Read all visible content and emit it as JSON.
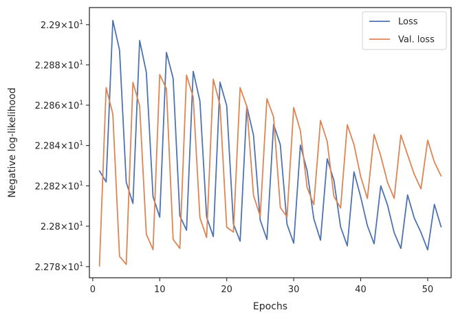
{
  "chart_data": {
    "type": "line",
    "title": "",
    "xlabel": "Epochs",
    "ylabel": "Negative log-likelihood",
    "xlim": [
      -0.5,
      53.5
    ],
    "ylim": [
      22.7745,
      22.9085
    ],
    "yscale": "log",
    "grid": false,
    "legend_position": "top-right",
    "x_ticks": [
      0,
      10,
      20,
      30,
      40,
      50
    ],
    "x_tick_labels": [
      "0",
      "10",
      "20",
      "30",
      "40",
      "50"
    ],
    "y_ticks": [
      22.78,
      22.8,
      22.82,
      22.84,
      22.86,
      22.88,
      22.9
    ],
    "y_tick_labels": [
      {
        "mantissa": "2.278",
        "exp": "1"
      },
      {
        "mantissa": "2.28",
        "exp": "1"
      },
      {
        "mantissa": "2.282",
        "exp": "1"
      },
      {
        "mantissa": "2.284",
        "exp": "1"
      },
      {
        "mantissa": "2.286",
        "exp": "1"
      },
      {
        "mantissa": "2.288",
        "exp": "1"
      },
      {
        "mantissa": "2.29",
        "exp": "1"
      }
    ],
    "x": [
      1,
      2,
      3,
      4,
      5,
      6,
      7,
      8,
      9,
      10,
      11,
      12,
      13,
      14,
      15,
      16,
      17,
      18,
      19,
      20,
      21,
      22,
      23,
      24,
      25,
      26,
      27,
      28,
      29,
      30,
      31,
      32,
      33,
      34,
      35,
      36,
      37,
      38,
      39,
      40,
      41,
      42,
      43,
      44,
      45,
      46,
      47,
      48,
      49,
      50,
      51,
      52
    ],
    "series": [
      {
        "name": "Loss",
        "color": "#4c72b0",
        "values": [
          22.8274,
          22.8219,
          22.9021,
          22.8874,
          22.8218,
          22.8113,
          22.8921,
          22.8763,
          22.8146,
          22.8045,
          22.8862,
          22.8733,
          22.8052,
          22.798,
          22.8768,
          22.862,
          22.8045,
          22.7949,
          22.8714,
          22.8597,
          22.8011,
          22.7926,
          22.8595,
          22.845,
          22.803,
          22.7935,
          22.8505,
          22.8404,
          22.801,
          22.7916,
          22.8402,
          22.8275,
          22.8037,
          22.7931,
          22.8334,
          22.8227,
          22.7997,
          22.7903,
          22.8269,
          22.8145,
          22.8003,
          22.7913,
          22.82,
          22.8106,
          22.7968,
          22.789,
          22.8155,
          22.804,
          22.7969,
          22.7883,
          22.8108,
          22.7997
        ]
      },
      {
        "name": "Val. loss",
        "color": "#dd8452",
        "values": [
          22.7803,
          22.8687,
          22.8556,
          22.7851,
          22.7811,
          22.8713,
          22.8597,
          22.796,
          22.7884,
          22.8752,
          22.8681,
          22.7935,
          22.789,
          22.8749,
          22.864,
          22.8042,
          22.7944,
          22.8729,
          22.86,
          22.7995,
          22.7971,
          22.8687,
          22.8594,
          22.8153,
          22.8049,
          22.8632,
          22.8541,
          22.8093,
          22.8046,
          22.8588,
          22.8473,
          22.8192,
          22.8107,
          22.8524,
          22.842,
          22.8148,
          22.809,
          22.8503,
          22.8404,
          22.8246,
          22.8137,
          22.8455,
          22.8348,
          22.8218,
          22.8138,
          22.8452,
          22.8354,
          22.8257,
          22.8185,
          22.8426,
          22.8318,
          22.8249
        ]
      }
    ]
  }
}
